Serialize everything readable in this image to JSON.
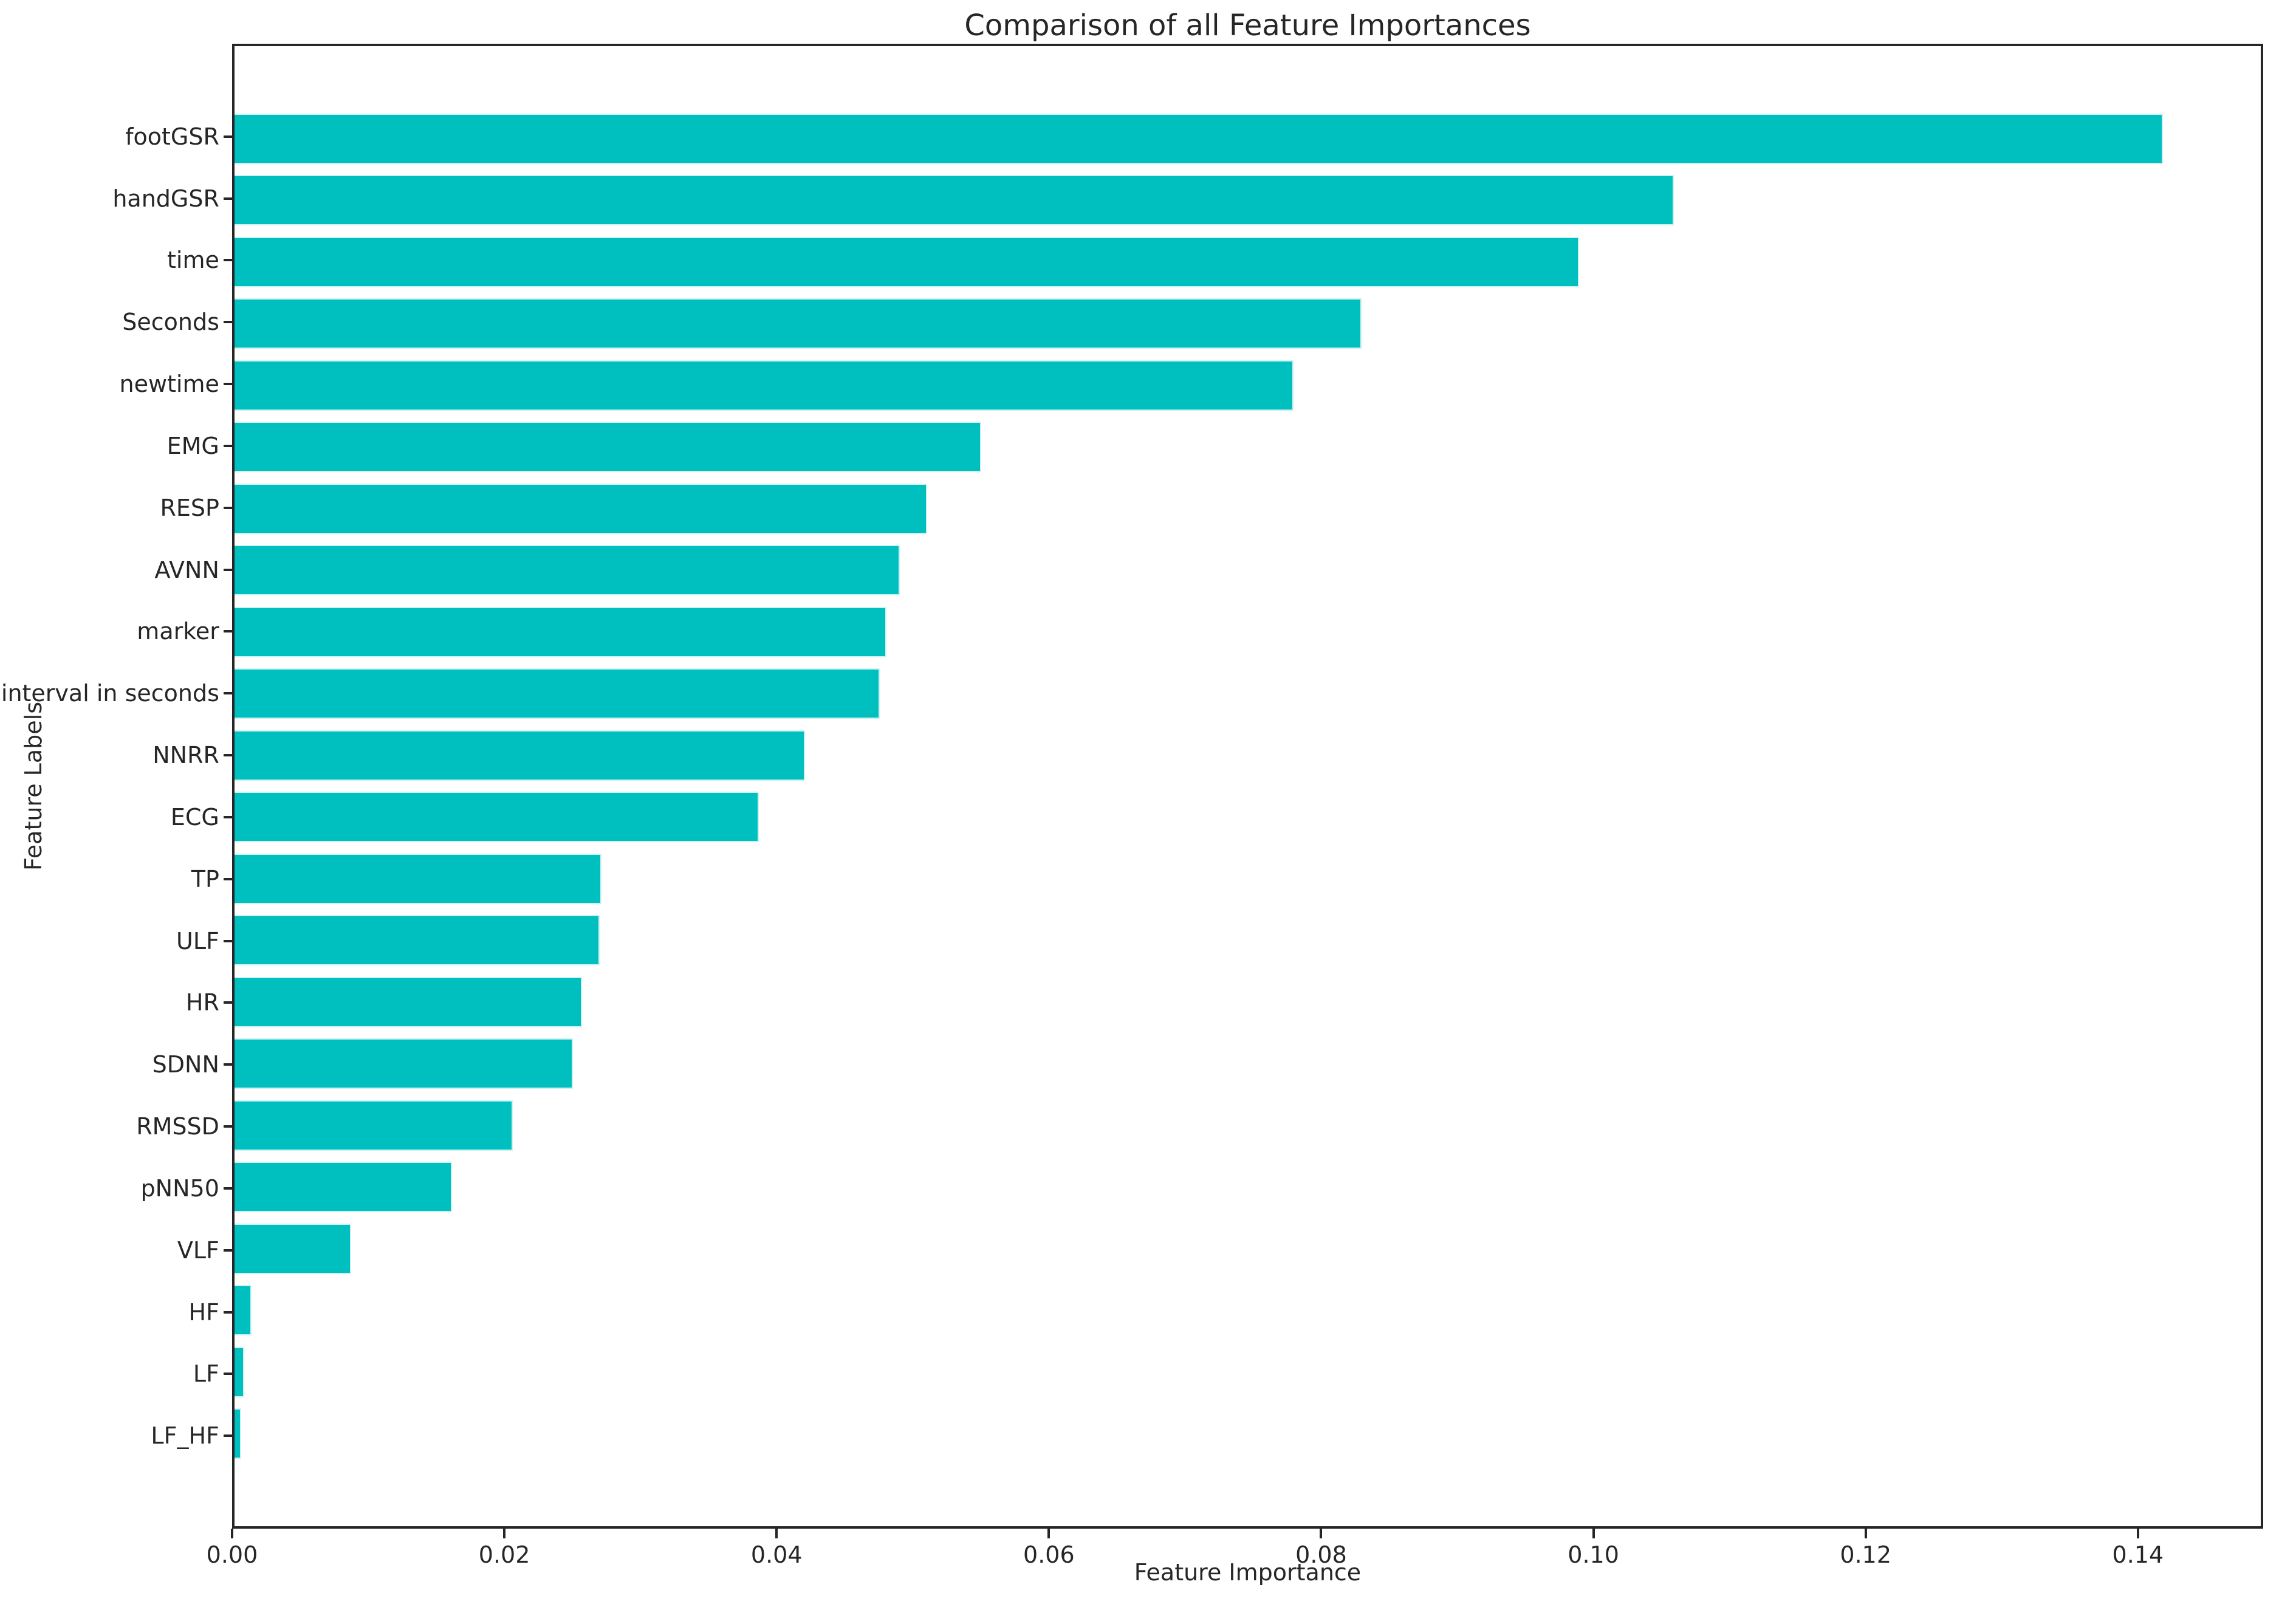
{
  "chart_data": {
    "type": "bar",
    "orientation": "horizontal",
    "title": "Comparison of all Feature Importances",
    "xlabel": "Feature Importance",
    "ylabel": "Feature Labels",
    "categories": [
      "footGSR",
      "handGSR",
      "time",
      "Seconds",
      "newtime",
      "EMG",
      "RESP",
      "AVNN",
      "marker",
      "interval in seconds",
      "NNRR",
      "ECG",
      "TP",
      "ULF",
      "HR",
      "SDNN",
      "RMSSD",
      "pNN50",
      "VLF",
      "HF",
      "LF",
      "LF_HF"
    ],
    "values": [
      0.142,
      0.106,
      0.099,
      0.083,
      0.078,
      0.055,
      0.051,
      0.049,
      0.048,
      0.0475,
      0.042,
      0.0386,
      0.027,
      0.0269,
      0.0256,
      0.0249,
      0.0205,
      0.016,
      0.0086,
      0.00125,
      0.0007,
      0.0005
    ],
    "x_ticks": [
      0.0,
      0.02,
      0.04,
      0.06,
      0.08,
      0.1,
      0.12,
      0.14
    ],
    "x_tick_labels": [
      "0.00",
      "0.02",
      "0.04",
      "0.06",
      "0.08",
      "0.10",
      "0.12",
      "0.14"
    ],
    "xlim": [
      0,
      0.1492
    ],
    "grid": false,
    "legend": null,
    "bar_color": "#00bfbf",
    "bar_edge_color": "#cdf2f2",
    "axis_color": "#262626",
    "text_color": "#262626",
    "background": "#ffffff"
  }
}
